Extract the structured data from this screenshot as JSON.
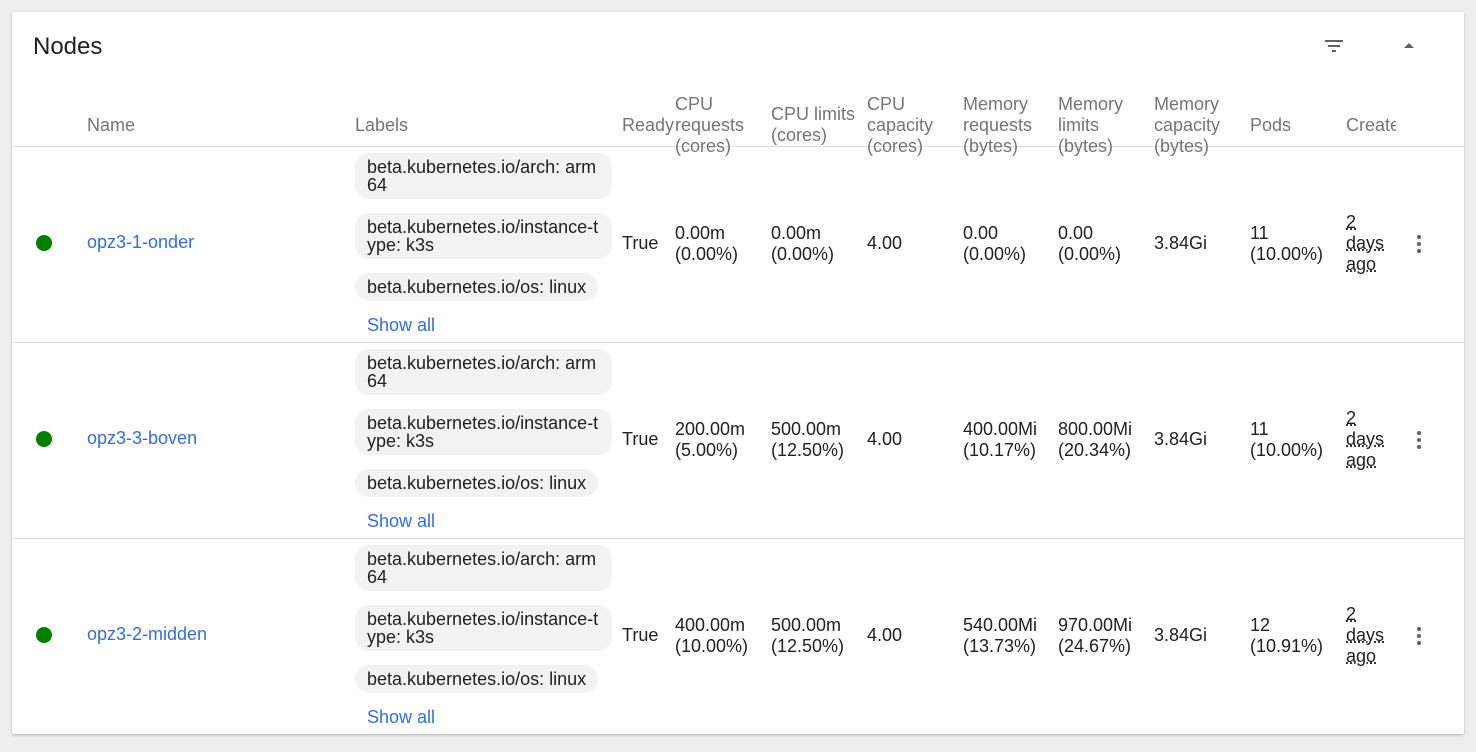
{
  "card": {
    "title": "Nodes"
  },
  "icons": {
    "filter": "filter-list-icon",
    "collapse": "arrow-drop-up-icon",
    "menu": "more-vert-icon"
  },
  "colors": {
    "link": "#326de6",
    "ready": "#008000",
    "chip_bg": "#f2f2f2"
  },
  "columns": {
    "name": "Name",
    "labels": "Labels",
    "ready": "Ready",
    "cpu_requests": "CPU\nrequests\n(cores)",
    "cpu_limits": "CPU limits\n(cores)",
    "cpu_capacity": "CPU\ncapacity\n(cores)",
    "memory_requests": "Memory\nrequests\n(bytes)",
    "memory_limits": "Memory\nlimits\n(bytes)",
    "memory_capacity": "Memory\ncapacity\n(bytes)",
    "pods": "Pods",
    "created": "Create"
  },
  "nodes": [
    {
      "name": "opz3-1-onder",
      "labels": [
        "beta.kubernetes.io/arch: arm64",
        "beta.kubernetes.io/instance-type: k3s",
        "beta.kubernetes.io/os: linux"
      ],
      "show_all": "Show all",
      "ready": "True",
      "cpu_requests": "0.00m\n(0.00%)",
      "cpu_limits": "0.00m\n(0.00%)",
      "cpu_capacity": "4.00",
      "memory_requests": "0.00\n(0.00%)",
      "memory_limits": "0.00\n(0.00%)",
      "memory_capacity": "3.84Gi",
      "pods": "11\n(10.00%)",
      "created": "2\ndays\nago"
    },
    {
      "name": "opz3-3-boven",
      "labels": [
        "beta.kubernetes.io/arch: arm64",
        "beta.kubernetes.io/instance-type: k3s",
        "beta.kubernetes.io/os: linux"
      ],
      "show_all": "Show all",
      "ready": "True",
      "cpu_requests": "200.00m\n(5.00%)",
      "cpu_limits": "500.00m\n(12.50%)",
      "cpu_capacity": "4.00",
      "memory_requests": "400.00Mi\n(10.17%)",
      "memory_limits": "800.00Mi\n(20.34%)",
      "memory_capacity": "3.84Gi",
      "pods": "11\n(10.00%)",
      "created": "2\ndays\nago"
    },
    {
      "name": "opz3-2-midden",
      "labels": [
        "beta.kubernetes.io/arch: arm64",
        "beta.kubernetes.io/instance-type: k3s",
        "beta.kubernetes.io/os: linux"
      ],
      "show_all": "Show all",
      "ready": "True",
      "cpu_requests": "400.00m\n(10.00%)",
      "cpu_limits": "500.00m\n(12.50%)",
      "cpu_capacity": "4.00",
      "memory_requests": "540.00Mi\n(13.73%)",
      "memory_limits": "970.00Mi\n(24.67%)",
      "memory_capacity": "3.84Gi",
      "pods": "12\n(10.91%)",
      "created": "2\ndays\nago"
    }
  ]
}
